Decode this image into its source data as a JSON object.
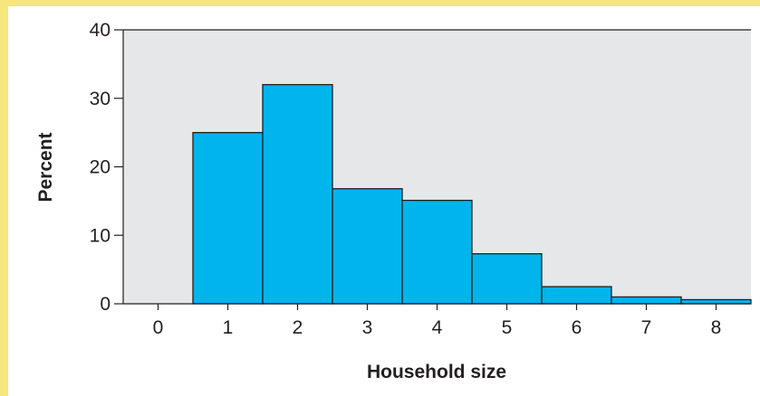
{
  "chart_data": {
    "type": "bar",
    "xlabel": "Household size",
    "ylabel": "Percent",
    "x_ticks": [
      "0",
      "1",
      "2",
      "3",
      "4",
      "5",
      "6",
      "7",
      "8"
    ],
    "y_ticks": [
      "0",
      "10",
      "20",
      "30",
      "40"
    ],
    "categories": [
      "1",
      "2",
      "3",
      "4",
      "5",
      "6",
      "7",
      "8"
    ],
    "values": [
      25,
      32,
      16.8,
      15.1,
      7.3,
      2.5,
      1.0,
      0.6
    ],
    "xlim": [
      -0.5,
      8.5
    ],
    "ylim": [
      0,
      40
    ],
    "grid": false,
    "colors": {
      "bar_fill": "#00b5ec",
      "bar_stroke": "#231f20",
      "plot_background": "#e6e7e8",
      "page_background": "#ffffff",
      "frame": "#f6e77d"
    }
  }
}
